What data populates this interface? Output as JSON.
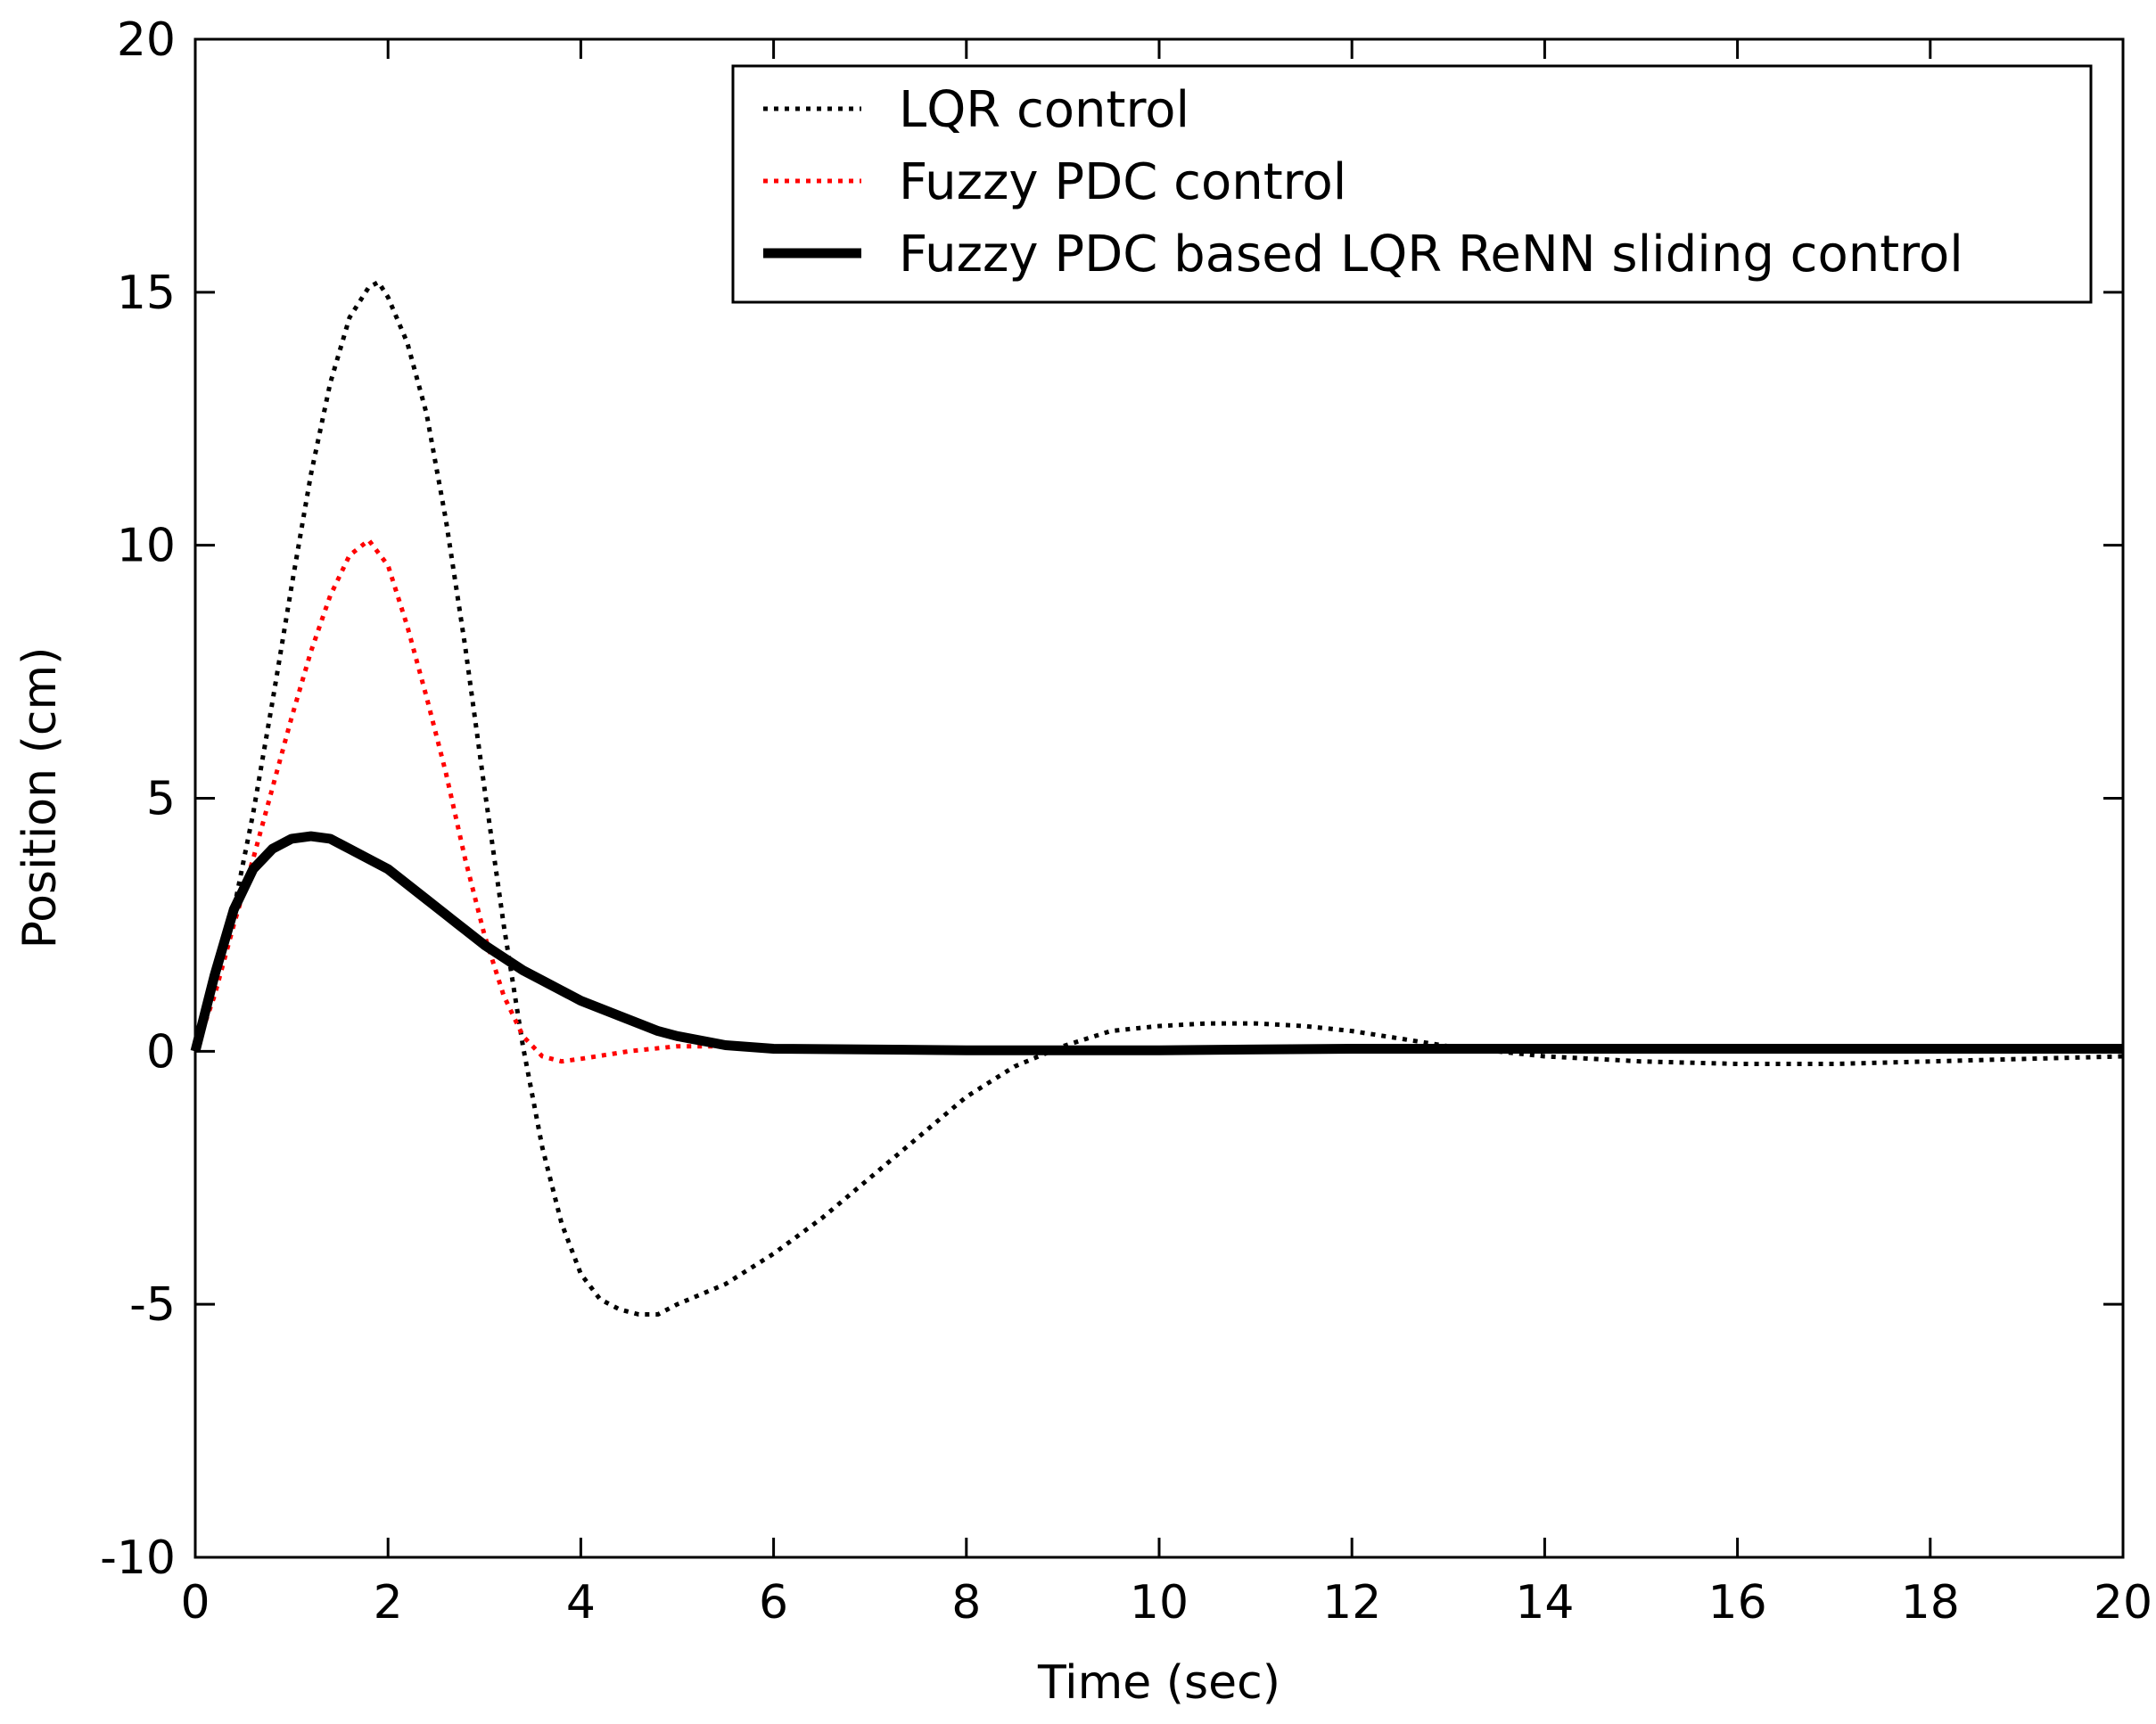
{
  "chart_data": {
    "type": "line",
    "title": "",
    "xlabel": "Time (sec)",
    "ylabel": "Position (cm)",
    "xlim": [
      0,
      20
    ],
    "ylim": [
      -10,
      20
    ],
    "xticks": [
      0,
      2,
      4,
      6,
      8,
      10,
      12,
      14,
      16,
      18,
      20
    ],
    "yticks": [
      -10,
      -5,
      0,
      5,
      10,
      15,
      20
    ],
    "grid": false,
    "legend_position": "top-right",
    "series": [
      {
        "name": "LQR control",
        "color": "#000000",
        "style": "dotted",
        "x": [
          0,
          0.2,
          0.4,
          0.6,
          0.8,
          1.0,
          1.2,
          1.4,
          1.6,
          1.8,
          1.9,
          2.0,
          2.2,
          2.4,
          2.6,
          2.8,
          3.0,
          3.2,
          3.4,
          3.6,
          3.8,
          4.0,
          4.2,
          4.4,
          4.6,
          4.8,
          5.0,
          5.5,
          6.0,
          6.5,
          7.0,
          7.5,
          8.0,
          8.5,
          9.0,
          9.5,
          10.0,
          10.5,
          11.0,
          11.5,
          12.0,
          12.5,
          13.0,
          13.5,
          14.0,
          15.0,
          16.0,
          17.0,
          18.0,
          19.0,
          20.0
        ],
        "values": [
          0,
          1.2,
          2.8,
          4.7,
          6.9,
          9.2,
          11.4,
          13.2,
          14.5,
          15.1,
          15.2,
          14.9,
          14.0,
          12.6,
          10.5,
          8.0,
          5.2,
          2.5,
          0.1,
          -1.9,
          -3.4,
          -4.4,
          -4.9,
          -5.1,
          -5.2,
          -5.2,
          -5.0,
          -4.6,
          -4.0,
          -3.3,
          -2.5,
          -1.7,
          -0.9,
          -0.3,
          0.1,
          0.4,
          0.5,
          0.55,
          0.55,
          0.5,
          0.4,
          0.25,
          0.1,
          0,
          -0.1,
          -0.2,
          -0.25,
          -0.25,
          -0.2,
          -0.15,
          -0.1
        ]
      },
      {
        "name": "Fuzzy PDC control",
        "color": "#ff0000",
        "style": "dotted",
        "x": [
          0,
          0.2,
          0.4,
          0.6,
          0.8,
          1.0,
          1.2,
          1.4,
          1.6,
          1.8,
          2.0,
          2.2,
          2.4,
          2.6,
          2.8,
          3.0,
          3.2,
          3.4,
          3.6,
          3.8,
          4.0,
          4.5,
          5.0,
          5.5,
          6.0,
          8.0,
          10.0,
          12.0,
          14.0,
          16.0,
          18.0,
          20.0
        ],
        "values": [
          0,
          1.1,
          2.5,
          3.8,
          5.2,
          6.6,
          7.9,
          9.0,
          9.8,
          10.1,
          9.6,
          8.4,
          7.0,
          5.5,
          3.8,
          2.3,
          1.1,
          0.3,
          -0.1,
          -0.2,
          -0.15,
          0,
          0.1,
          0.1,
          0.05,
          0.05,
          0.05,
          0.05,
          0.05,
          0.05,
          0.05,
          0.05
        ]
      },
      {
        "name": "Fuzzy PDC based LQR ReNN sliding control",
        "color": "#000000",
        "style": "solid",
        "x": [
          0,
          0.2,
          0.4,
          0.6,
          0.8,
          1.0,
          1.2,
          1.4,
          1.6,
          1.8,
          2.0,
          2.2,
          2.4,
          2.6,
          2.8,
          3.0,
          3.2,
          3.4,
          3.6,
          3.8,
          4.0,
          4.2,
          4.4,
          4.6,
          4.8,
          5.0,
          5.5,
          6.0,
          8.0,
          10.0,
          12.0,
          14.0,
          16.0,
          18.0,
          20.0
        ],
        "values": [
          0,
          1.5,
          2.8,
          3.6,
          4.0,
          4.2,
          4.25,
          4.2,
          4.0,
          3.8,
          3.6,
          3.3,
          3.0,
          2.7,
          2.4,
          2.1,
          1.85,
          1.6,
          1.4,
          1.2,
          1.0,
          0.85,
          0.7,
          0.55,
          0.4,
          0.3,
          0.12,
          0.05,
          0.02,
          0.02,
          0.05,
          0.05,
          0.05,
          0.05,
          0.05
        ]
      }
    ]
  }
}
